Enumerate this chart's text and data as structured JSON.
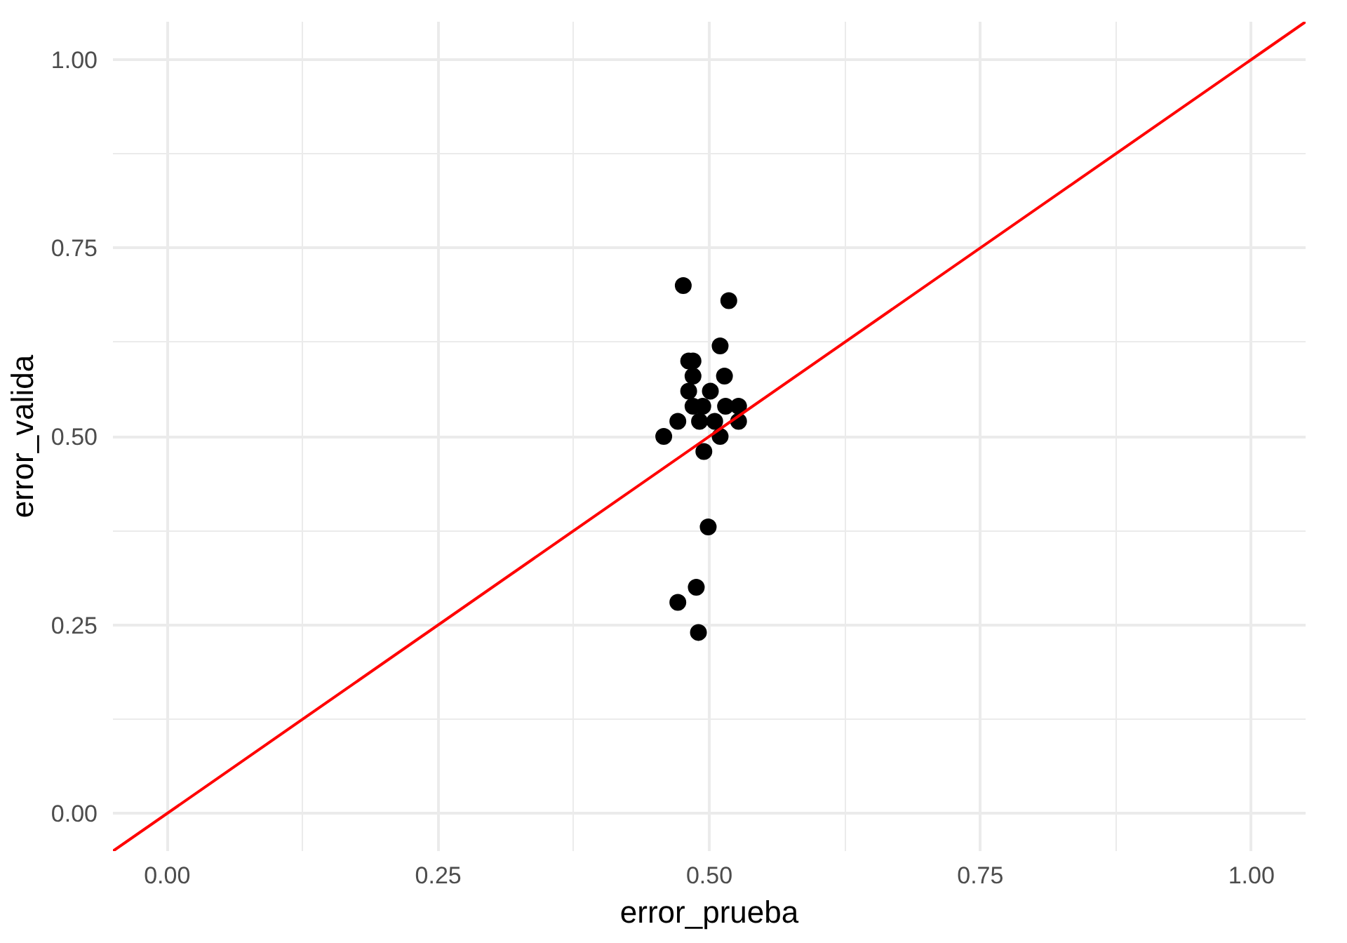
{
  "chart_data": {
    "type": "scatter",
    "xlabel": "error_prueba",
    "ylabel": "error_valida",
    "xlim": [
      -0.05,
      1.05
    ],
    "ylim": [
      -0.05,
      1.05
    ],
    "xticks": [
      {
        "value": 0,
        "label": "0.00"
      },
      {
        "value": 0.125,
        "label": null
      },
      0.25,
      {
        "value": 0.375,
        "label": null
      },
      {
        "value": 0.5,
        "label": "0.50"
      },
      {
        "value": 0.625,
        "label": null
      },
      0.75,
      {
        "value": 0.875,
        "label": null
      },
      {
        "value": 1,
        "label": "1.00"
      }
    ],
    "yticks": [
      {
        "value": 0,
        "label": "0.00"
      },
      {
        "value": 0.125,
        "label": null
      },
      0.25,
      {
        "value": 0.375,
        "label": null
      },
      {
        "value": 0.5,
        "label": "0.50"
      },
      {
        "value": 0.625,
        "label": null
      },
      0.75,
      {
        "value": 0.875,
        "label": null
      },
      {
        "value": 1,
        "label": "1.00"
      }
    ],
    "grid": true,
    "series": [
      {
        "marker": "circle",
        "color": "#000000",
        "x": [
          0.476,
          0.518,
          0.51,
          0.481,
          0.485,
          0.514,
          0.485,
          0.481,
          0.501,
          0.485,
          0.494,
          0.515,
          0.527,
          0.471,
          0.491,
          0.505,
          0.527,
          0.458,
          0.51,
          0.495,
          0.499,
          0.488,
          0.471,
          0.49
        ],
        "values": [
          0.7,
          0.68,
          0.62,
          0.6,
          0.6,
          0.58,
          0.58,
          0.56,
          0.56,
          0.54,
          0.54,
          0.54,
          0.54,
          0.52,
          0.52,
          0.52,
          0.52,
          0.5,
          0.5,
          0.48,
          0.38,
          0.3,
          0.28,
          0.24
        ]
      },
      {
        "type": "line",
        "color": "#ff0000",
        "line_style": "solid",
        "x": [
          -0.05,
          1.05
        ],
        "values": [
          -0.05,
          1.05
        ]
      }
    ]
  }
}
